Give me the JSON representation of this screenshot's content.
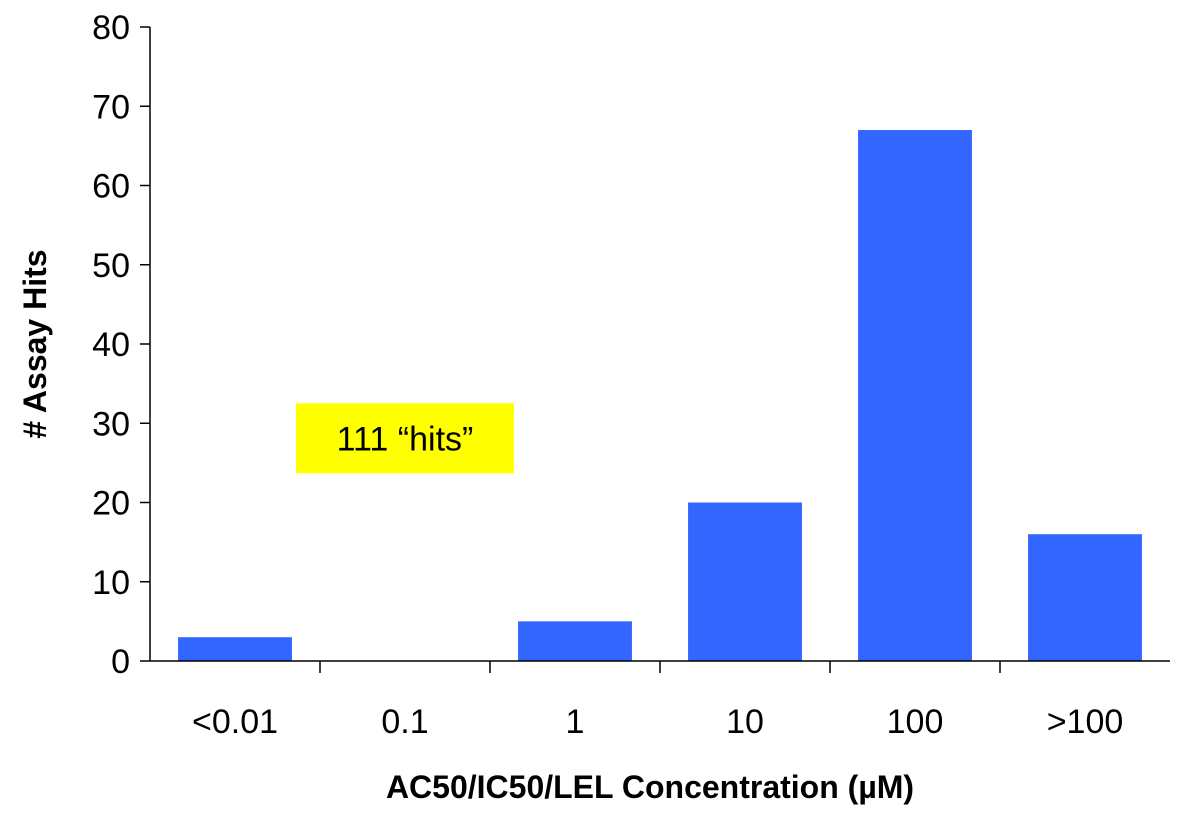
{
  "chart_data": {
    "type": "bar",
    "categories": [
      "<0.01",
      "0.1",
      "1",
      "10",
      "100",
      ">100"
    ],
    "values": [
      3,
      0,
      5,
      20,
      67,
      16
    ],
    "title": "",
    "xlabel": "AC50/IC50/LEL Concentration (µM)",
    "ylabel": "# Assay Hits",
    "ylim": [
      0,
      80
    ],
    "yticks": [
      0,
      10,
      20,
      30,
      40,
      50,
      60,
      70,
      80
    ],
    "grid": false,
    "legend": "none",
    "bar_color": "#3366ff",
    "annotation": {
      "text": "111 “hits”",
      "x_category": "0.1",
      "y_value": 30,
      "background": "#ffff00"
    }
  }
}
